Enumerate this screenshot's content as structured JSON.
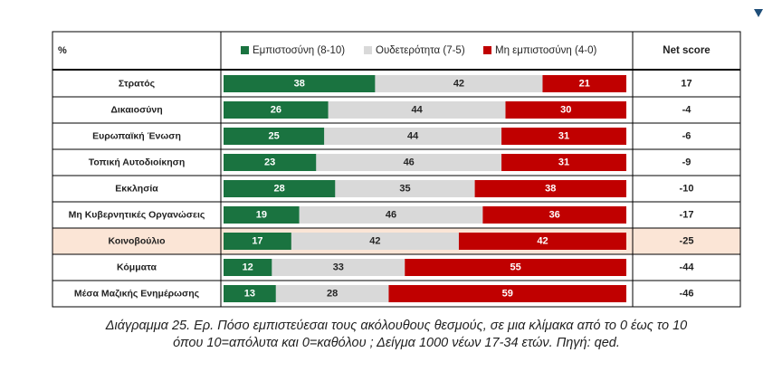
{
  "chart_data": {
    "type": "bar",
    "stacked": true,
    "orientation": "horizontal",
    "corner_label": "%",
    "net_score_header": "Net score",
    "categories": [
      "Στρατός",
      "Δικαιοσύνη",
      "Ευρωπαϊκή Ένωση",
      "Τοπική Αυτοδιοίκηση",
      "Εκκλησία",
      "Μη Κυβερνητικές Οργανώσεις",
      "Κοινοβούλιο",
      "Κόμματα",
      "Μέσα Μαζικής Ενημέρωσης"
    ],
    "series": [
      {
        "name": "Εμπιστοσύνη (8-10)",
        "color": "#1a7340",
        "values": [
          38,
          26,
          25,
          23,
          28,
          19,
          17,
          12,
          13
        ]
      },
      {
        "name": "Ουδετερότητα (7-5)",
        "color": "#d9d9d9",
        "values": [
          42,
          44,
          44,
          46,
          35,
          46,
          42,
          33,
          28
        ]
      },
      {
        "name": "Μη εμπιστοσύνη (4-0)",
        "color": "#c00000",
        "values": [
          21,
          30,
          31,
          31,
          38,
          36,
          42,
          55,
          59
        ]
      }
    ],
    "net_score": [
      "17",
      "-4",
      "-6",
      "-9",
      "-10",
      "-17",
      "-25",
      "-44",
      "-46"
    ],
    "highlighted_category": "Κοινοβούλιο",
    "highlight_color": "#fbe5d6"
  },
  "caption": {
    "line1": "Διάγραμμα 25. Ερ. Πόσο εμπιστεύεσαι τους ακόλουθους θεσμούς, σε μια κλίμακα από το 0 έως το 10",
    "line2": "όπου 10=απόλυτα και 0=καθόλου ; Δείγμα 1000 νέων 17-34 ετών. Πηγή: qed."
  }
}
